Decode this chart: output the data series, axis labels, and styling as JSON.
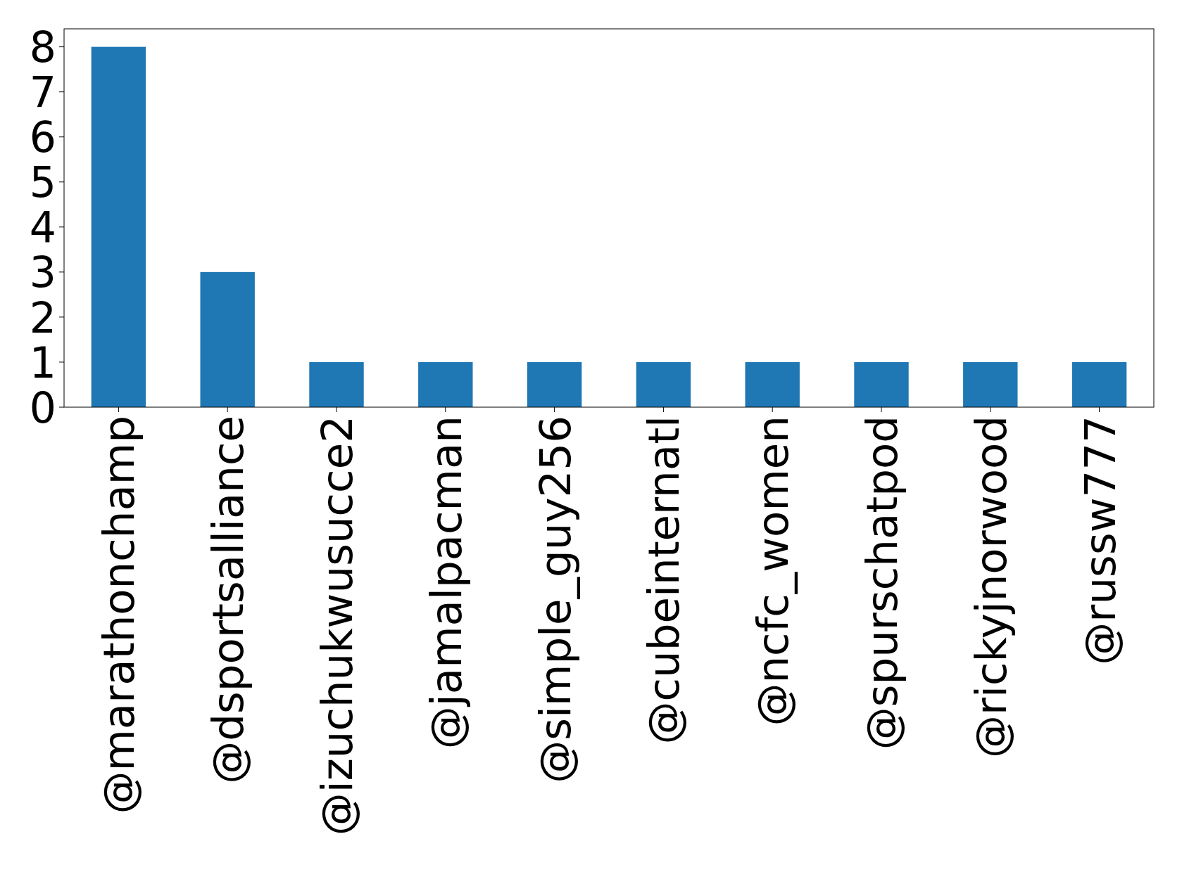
{
  "chart_data": {
    "type": "bar",
    "categories": [
      "@marathonchamp",
      "@dsportsalliance",
      "@izuchukwusucce2",
      "@jamalpacman",
      "@simple_guy256",
      "@cubeinternatl",
      "@ncfc_women",
      "@spurschatpod",
      "@rickyjnorwood",
      "@russw777"
    ],
    "values": [
      8,
      3,
      1,
      1,
      1,
      1,
      1,
      1,
      1,
      1
    ],
    "color": "#1f77b4",
    "ylim": [
      0,
      8.4
    ],
    "yticks": [
      0,
      1,
      2,
      3,
      4,
      5,
      6,
      7,
      8
    ],
    "grid": false
  }
}
